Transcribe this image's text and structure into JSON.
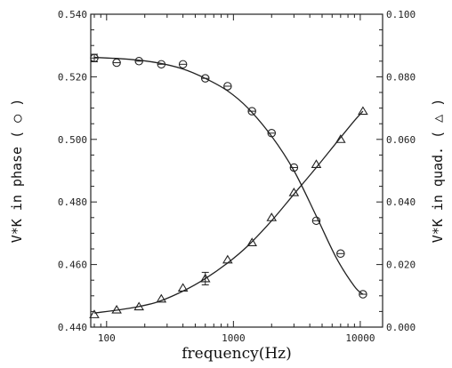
{
  "chart_data": {
    "type": "scatter",
    "x_scale": "log",
    "xlim": [
      75,
      15000
    ],
    "ylim_left": [
      0.44,
      0.54
    ],
    "ylim_right": [
      0.0,
      0.1
    ],
    "xlabel": "frequency(Hz)",
    "ylabel_left": "V*K in phase ( ○ )",
    "ylabel_right": "V*K in quad. ( △ )",
    "x_tick_labels": [
      "100",
      "1000",
      "10000"
    ],
    "x_tick_values": [
      100,
      1000,
      10000
    ],
    "y_left_tick_labels": [
      "0.440",
      "0.460",
      "0.480",
      "0.500",
      "0.520",
      "0.540"
    ],
    "y_left_tick_values": [
      0.44,
      0.46,
      0.48,
      0.5,
      0.52,
      0.54
    ],
    "y_right_tick_labels": [
      "0.000",
      "0.020",
      "0.040",
      "0.060",
      "0.080",
      "0.100"
    ],
    "y_right_tick_values": [
      0.0,
      0.02,
      0.04,
      0.06,
      0.08,
      0.1
    ],
    "grid": false,
    "series": [
      {
        "axis": "left",
        "marker": "circle",
        "x": [
          80,
          120,
          180,
          270,
          400,
          600,
          900,
          1400,
          2000,
          3000,
          4500,
          7000,
          10500
        ],
        "y": [
          0.526,
          0.5245,
          0.525,
          0.524,
          0.524,
          0.5195,
          0.517,
          0.509,
          0.502,
          0.491,
          0.474,
          0.4635,
          0.4505
        ],
        "y_err": [
          0.0012,
          0,
          0,
          0,
          0,
          0,
          0,
          0,
          0,
          0,
          0,
          0,
          0
        ],
        "fit": {
          "x": [
            80,
            150,
            250,
            400,
            600,
            900,
            1300,
            2000,
            3000,
            4500,
            6500,
            9000,
            10500
          ],
          "y": [
            0.5262,
            0.5256,
            0.5245,
            0.5225,
            0.5195,
            0.5155,
            0.51,
            0.501,
            0.49,
            0.4755,
            0.462,
            0.453,
            0.4505
          ]
        }
      },
      {
        "axis": "right",
        "marker": "triangle",
        "x": [
          80,
          120,
          180,
          270,
          400,
          600,
          900,
          1400,
          2000,
          3000,
          4500,
          7000,
          10500
        ],
        "y": [
          0.004,
          0.0055,
          0.0065,
          0.009,
          0.0125,
          0.0155,
          0.0215,
          0.027,
          0.035,
          0.043,
          0.052,
          0.06,
          0.069
        ],
        "y_err": [
          0,
          0,
          0,
          0,
          0,
          0.002,
          0,
          0,
          0,
          0,
          0,
          0,
          0
        ],
        "fit": {
          "x": [
            80,
            150,
            250,
            400,
            600,
            900,
            1300,
            2000,
            3000,
            4500,
            6500,
            9000,
            10500
          ],
          "y": [
            0.0045,
            0.006,
            0.008,
            0.0115,
            0.0155,
            0.0205,
            0.026,
            0.034,
            0.0425,
            0.051,
            0.059,
            0.066,
            0.069
          ]
        }
      }
    ]
  }
}
